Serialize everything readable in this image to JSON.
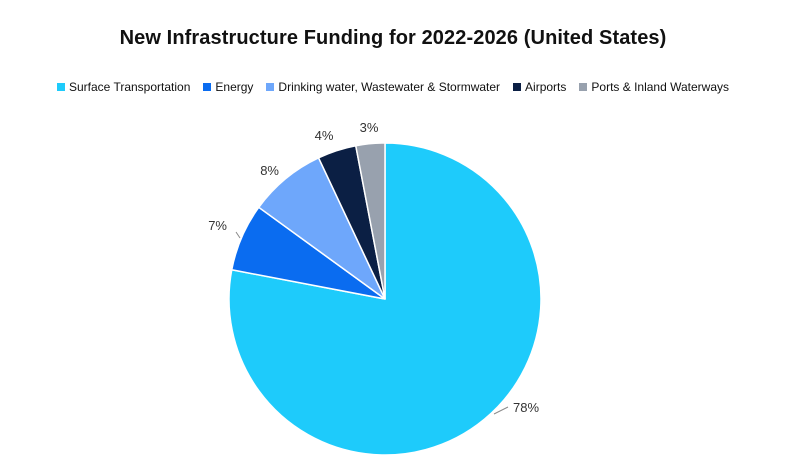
{
  "chart_data": {
    "type": "pie",
    "title": "New Infrastructure Funding for 2022-2026 (United States)",
    "legend_position": "top",
    "slices": [
      {
        "name": "Surface Transportation",
        "value": 78,
        "label": "78%",
        "color": "#1ECBFB"
      },
      {
        "name": "Energy",
        "value": 7,
        "label": "7%",
        "color": "#0A6CF0"
      },
      {
        "name": "Drinking water, Wastewater & Stormwater",
        "value": 8,
        "label": "8%",
        "color": "#6EA7FB"
      },
      {
        "name": "Airports",
        "value": 4,
        "label": "4%",
        "color": "#0B1F44"
      },
      {
        "name": "Ports & Inland Waterways",
        "value": 3,
        "label": "3%",
        "color": "#98A1AE"
      }
    ]
  }
}
